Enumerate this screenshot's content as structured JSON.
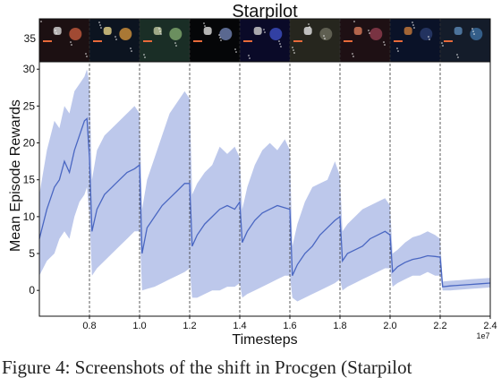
{
  "chart_data": {
    "type": "line",
    "title": "Starpilot",
    "xlabel": "Timesteps",
    "ylabel": "Mean Episode Rewards",
    "x_multiplier_label": "1e7",
    "xlim": [
      0.6,
      2.4
    ],
    "ylim": [
      -3.5,
      31
    ],
    "x_ticks": [
      0.8,
      1.0,
      1.2,
      1.4,
      1.6,
      1.8,
      2.0,
      2.2,
      2.4
    ],
    "x_tick_labels": [
      "0.8",
      "1.0",
      "1.2",
      "1.4",
      "1.6",
      "1.8",
      "2.0",
      "2.2",
      "2.4"
    ],
    "y_ticks": [
      0,
      5,
      10,
      15,
      20,
      25,
      30
    ],
    "y_tick_labels": [
      "0",
      "5",
      "10",
      "15",
      "20",
      "25",
      "30"
    ],
    "thumbnail_strip_tick": "35",
    "task_switches": [
      0.8,
      1.0,
      1.2,
      1.4,
      1.6,
      1.8,
      2.0,
      2.2
    ],
    "grid": false,
    "line_color": "#4a67c2",
    "band_color": "#b9c5ea",
    "series": [
      {
        "x": [
          0.6,
          0.63,
          0.66,
          0.68,
          0.7,
          0.72,
          0.74,
          0.76,
          0.78,
          0.79,
          0.8,
          0.81,
          0.83,
          0.86,
          0.89,
          0.92,
          0.95,
          0.98,
          1.0,
          1.01,
          1.03,
          1.06,
          1.09,
          1.12,
          1.15,
          1.18,
          1.2,
          1.21,
          1.23,
          1.26,
          1.29,
          1.32,
          1.35,
          1.38,
          1.4,
          1.41,
          1.43,
          1.46,
          1.49,
          1.52,
          1.55,
          1.58,
          1.6,
          1.61,
          1.63,
          1.66,
          1.69,
          1.72,
          1.75,
          1.78,
          1.8,
          1.81,
          1.83,
          1.86,
          1.89,
          1.92,
          1.95,
          1.98,
          2.0,
          2.01,
          2.03,
          2.06,
          2.09,
          2.12,
          2.15,
          2.18,
          2.2,
          2.21,
          2.24,
          2.28,
          2.32,
          2.36,
          2.4
        ],
        "mean": [
          7,
          11,
          14,
          15,
          17.5,
          16,
          19,
          21,
          23,
          23.3,
          18,
          8,
          11,
          13,
          14,
          15,
          16,
          16.5,
          17,
          5,
          8.5,
          10,
          11.5,
          12.5,
          13.5,
          14.5,
          14.5,
          6,
          7.5,
          9,
          10,
          11,
          11.5,
          11,
          12,
          6.5,
          8,
          9.5,
          10.5,
          11,
          11.5,
          11.2,
          11,
          2,
          3.5,
          5,
          6,
          7.5,
          8.5,
          9.5,
          10,
          4,
          5,
          5.5,
          6,
          7,
          7.5,
          8,
          7.5,
          2.5,
          3.2,
          3.8,
          4.2,
          4.4,
          4.7,
          4.6,
          4.5,
          0.5,
          0.6,
          0.7,
          0.8,
          0.9,
          1.0
        ],
        "upper": [
          13,
          19,
          23,
          22,
          25,
          24,
          27,
          28,
          29,
          30,
          28,
          15,
          19,
          21,
          22,
          23,
          24,
          25,
          24,
          11,
          15,
          18,
          21,
          24,
          25.5,
          27,
          26,
          13,
          14.5,
          16,
          17,
          19.5,
          18.5,
          19.5,
          18,
          11,
          14,
          17,
          19,
          20,
          19,
          20.5,
          19,
          6,
          9,
          12,
          14,
          14.5,
          15,
          17.5,
          15.5,
          8,
          9,
          10,
          11,
          11.5,
          12,
          12.5,
          11.5,
          5,
          5.5,
          6.5,
          7.2,
          7.5,
          8,
          7.5,
          7,
          1.2,
          1.3,
          1.4,
          1.5,
          1.6,
          1.7
        ],
        "lower": [
          2,
          4,
          5,
          7,
          8,
          7,
          10,
          12,
          13,
          14,
          10,
          2,
          3,
          4,
          5,
          6,
          7,
          8,
          8,
          0,
          0.2,
          0.5,
          1,
          1.5,
          2,
          2.5,
          3,
          -1,
          -1,
          -0.5,
          0,
          0,
          0.5,
          0.5,
          1,
          -1,
          -0.5,
          0,
          0.5,
          1,
          1.5,
          2,
          2,
          -1,
          -1.5,
          -1,
          -0.5,
          0,
          0.5,
          1,
          1.5,
          0,
          0.5,
          1,
          1.5,
          2,
          2.5,
          3,
          3,
          0.5,
          1,
          1.5,
          2,
          2,
          2.5,
          2,
          2,
          0,
          0,
          0.1,
          0.2,
          0.3,
          0.4
        ]
      }
    ]
  },
  "thumbnails": [
    {
      "bg": "#1c1012",
      "accent": "#b8553a",
      "accent2": "#d8d8d8"
    },
    {
      "bg": "#0c1420",
      "accent": "#c58a3a",
      "accent2": "#e8d48a"
    },
    {
      "bg": "#1a2e26",
      "accent": "#7aa06a",
      "accent2": "#c0c8a0"
    },
    {
      "bg": "#050608",
      "accent": "#6a7aa8",
      "accent2": "#e0e0e0"
    },
    {
      "bg": "#0a0a28",
      "accent": "#3a4ab8",
      "accent2": "#d0d0d0"
    },
    {
      "bg": "#26261e",
      "accent": "#6a6a5a",
      "accent2": "#e6e6e6"
    },
    {
      "bg": "#1e1014",
      "accent": "#8a3a4a",
      "accent2": "#d87a5a"
    },
    {
      "bg": "#0a1228",
      "accent": "#283a6a",
      "accent2": "#c87a3a"
    },
    {
      "bg": "#141c2a",
      "accent": "#3a6a9a",
      "accent2": "#5a8ab8"
    }
  ],
  "caption": "Figure 4: Screenshots of the shift in Procgen (Starpilot"
}
